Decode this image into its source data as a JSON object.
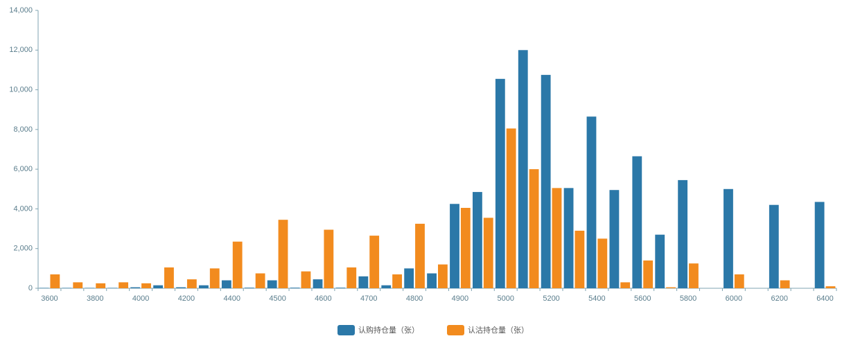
{
  "chart_data": {
    "type": "bar",
    "categories": [
      "3600",
      null,
      "3800",
      null,
      "4000",
      null,
      "4200",
      null,
      "4400",
      null,
      "4500",
      null,
      "4600",
      null,
      "4700",
      null,
      "4800",
      null,
      "4900",
      null,
      "5000",
      null,
      "5200",
      null,
      "5400",
      null,
      "5600",
      null,
      "5800",
      null,
      "6000",
      null,
      "6200",
      null,
      "6400"
    ],
    "series": [
      {
        "name": "认购持仓量（张）",
        "color": "#2b78a8",
        "values": [
          20,
          20,
          20,
          20,
          50,
          150,
          50,
          150,
          400,
          30,
          400,
          30,
          450,
          30,
          600,
          150,
          1000,
          750,
          4250,
          4850,
          10550,
          12000,
          10750,
          5050,
          8650,
          4950,
          6650,
          2700,
          5450,
          0,
          5000,
          0,
          4200,
          0,
          4350
        ]
      },
      {
        "name": "认沽持仓量（张）",
        "color": "#f28b1e",
        "values": [
          700,
          300,
          250,
          300,
          250,
          1050,
          450,
          1000,
          2350,
          750,
          3450,
          850,
          2950,
          1050,
          2650,
          700,
          3250,
          1200,
          4050,
          3550,
          8050,
          6000,
          5050,
          2900,
          2500,
          300,
          1400,
          50,
          1250,
          0,
          700,
          0,
          400,
          0,
          100
        ]
      }
    ],
    "ylim": [
      0,
      14000
    ],
    "yticks": [
      0,
      {
        "value": 2000,
        "label": "2,000"
      },
      {
        "value": 4000,
        "label": "4,000"
      },
      {
        "value": 6000,
        "label": "6,000"
      },
      {
        "value": 8000,
        "label": "8,000"
      },
      {
        "value": 10000,
        "label": "10,000"
      },
      {
        "value": 12000,
        "label": "12,000"
      },
      {
        "value": 14000,
        "label": "14,000"
      }
    ],
    "grid": false,
    "legend": "bottom"
  }
}
